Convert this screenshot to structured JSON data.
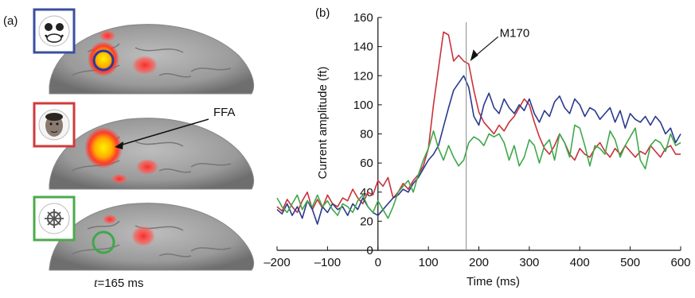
{
  "figure": {
    "panel_a_label": "(a)",
    "panel_b_label": "(b)",
    "time_prefix": "t",
    "time_value": "=165 ms",
    "ffa_label": "FFA",
    "stimulus_icons": [
      "cartoon-face-icon",
      "face-photo-icon",
      "ship-wheel-icon"
    ],
    "frame_colors": [
      "#3a4fa0",
      "#d23a3a",
      "#4caa4c"
    ]
  },
  "chart_data": {
    "type": "line",
    "title": "",
    "xlabel": "Time (ms)",
    "ylabel": "Current amplitude (ft)",
    "xlim": [
      -200,
      600
    ],
    "ylim": [
      0,
      160
    ],
    "x_ticks": [
      -200,
      -100,
      0,
      100,
      200,
      300,
      400,
      500,
      600
    ],
    "x_tick_labels": [
      "–200",
      "–100",
      "0",
      "100",
      "200",
      "300",
      "400",
      "500",
      "600"
    ],
    "y_ticks": [
      0,
      20,
      40,
      60,
      80,
      100,
      120,
      140,
      160
    ],
    "y_tick_labels": [
      "0",
      "20",
      "40",
      "60",
      "80",
      "100",
      "120",
      "140",
      "160"
    ],
    "grid": false,
    "annotation": {
      "text": "M170",
      "x": 175
    },
    "series": [
      {
        "color": "#c8323a",
        "x": [
          -200,
          -190,
          -180,
          -170,
          -160,
          -150,
          -140,
          -130,
          -120,
          -110,
          -100,
          -90,
          -80,
          -70,
          -60,
          -50,
          -40,
          -30,
          -20,
          -10,
          0,
          10,
          20,
          30,
          40,
          50,
          60,
          70,
          80,
          90,
          100,
          110,
          120,
          130,
          140,
          150,
          160,
          170,
          180,
          190,
          200,
          210,
          220,
          230,
          240,
          250,
          260,
          270,
          280,
          290,
          300,
          310,
          320,
          330,
          340,
          350,
          360,
          370,
          380,
          390,
          400,
          410,
          420,
          430,
          440,
          450,
          460,
          470,
          480,
          490,
          500,
          510,
          520,
          530,
          540,
          550,
          560,
          570,
          580,
          590,
          600
        ],
        "y": [
          30,
          27,
          35,
          30,
          26,
          34,
          40,
          28,
          35,
          29,
          38,
          32,
          30,
          36,
          34,
          42,
          36,
          32,
          40,
          38,
          48,
          44,
          50,
          36,
          40,
          46,
          42,
          48,
          52,
          58,
          70,
          100,
          125,
          150,
          148,
          130,
          134,
          130,
          128,
          110,
          95,
          88,
          84,
          80,
          86,
          82,
          88,
          92,
          98,
          104,
          100,
          88,
          78,
          70,
          66,
          72,
          80,
          74,
          66,
          62,
          70,
          66,
          64,
          70,
          74,
          68,
          64,
          70,
          66,
          72,
          68,
          64,
          68,
          66,
          72,
          68,
          64,
          70,
          72,
          66,
          66
        ]
      },
      {
        "color": "#2a3a8c",
        "x": [
          -200,
          -190,
          -180,
          -170,
          -160,
          -150,
          -140,
          -130,
          -120,
          -110,
          -100,
          -90,
          -80,
          -70,
          -60,
          -50,
          -40,
          -30,
          -20,
          -10,
          0,
          10,
          20,
          30,
          40,
          50,
          60,
          70,
          80,
          90,
          100,
          110,
          120,
          130,
          140,
          150,
          160,
          170,
          180,
          190,
          200,
          210,
          220,
          230,
          240,
          250,
          260,
          270,
          280,
          290,
          300,
          310,
          320,
          330,
          340,
          350,
          360,
          370,
          380,
          390,
          400,
          410,
          420,
          430,
          440,
          450,
          460,
          470,
          480,
          490,
          500,
          510,
          520,
          530,
          540,
          550,
          560,
          570,
          580,
          590,
          600
        ],
        "y": [
          28,
          25,
          32,
          24,
          30,
          22,
          34,
          28,
          18,
          30,
          26,
          32,
          28,
          30,
          24,
          32,
          28,
          36,
          30,
          26,
          24,
          28,
          32,
          36,
          38,
          42,
          40,
          46,
          50,
          56,
          62,
          66,
          72,
          85,
          98,
          110,
          115,
          120,
          112,
          92,
          86,
          100,
          108,
          98,
          94,
          104,
          98,
          94,
          100,
          96,
          104,
          94,
          88,
          96,
          92,
          102,
          106,
          98,
          94,
          104,
          100,
          92,
          98,
          96,
          90,
          94,
          98,
          88,
          96,
          84,
          94,
          90,
          88,
          92,
          86,
          92,
          88,
          80,
          84,
          74,
          80
        ]
      },
      {
        "color": "#3fa84a",
        "x": [
          -200,
          -190,
          -180,
          -170,
          -160,
          -150,
          -140,
          -130,
          -120,
          -110,
          -100,
          -90,
          -80,
          -70,
          -60,
          -50,
          -40,
          -30,
          -20,
          -10,
          0,
          10,
          20,
          30,
          40,
          50,
          60,
          70,
          80,
          90,
          100,
          110,
          120,
          130,
          140,
          150,
          160,
          170,
          180,
          190,
          200,
          210,
          220,
          230,
          240,
          250,
          260,
          270,
          280,
          290,
          300,
          310,
          320,
          330,
          340,
          350,
          360,
          370,
          380,
          390,
          400,
          410,
          420,
          430,
          440,
          450,
          460,
          470,
          480,
          490,
          500,
          510,
          520,
          530,
          540,
          550,
          560,
          570,
          580,
          590,
          600
        ],
        "y": [
          36,
          30,
          26,
          32,
          38,
          28,
          34,
          30,
          38,
          30,
          34,
          28,
          24,
          32,
          30,
          26,
          34,
          38,
          30,
          26,
          34,
          28,
          22,
          30,
          40,
          44,
          48,
          40,
          52,
          62,
          70,
          82,
          70,
          62,
          72,
          64,
          58,
          62,
          74,
          78,
          76,
          72,
          80,
          78,
          80,
          74,
          62,
          72,
          58,
          64,
          76,
          72,
          60,
          72,
          76,
          62,
          80,
          74,
          64,
          86,
          84,
          72,
          58,
          72,
          70,
          66,
          82,
          76,
          64,
          72,
          78,
          84,
          62,
          56,
          72,
          76,
          74,
          68,
          80,
          72,
          74
        ]
      }
    ]
  }
}
